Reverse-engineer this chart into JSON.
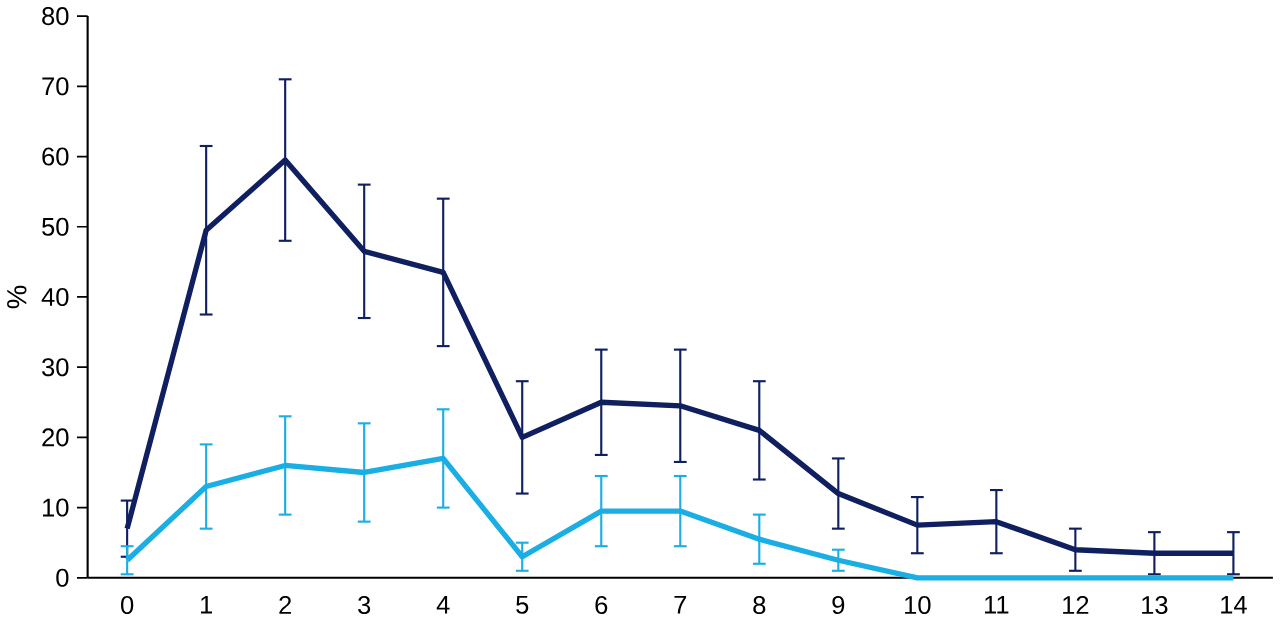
{
  "chart_data": {
    "type": "line",
    "ylabel": "%",
    "categories": [
      "0",
      "1",
      "2",
      "3",
      "4",
      "5",
      "6",
      "7",
      "8",
      "9",
      "10",
      "11",
      "12",
      "13",
      "14"
    ],
    "ylim": [
      0,
      80
    ],
    "yticks": [
      0,
      10,
      20,
      30,
      40,
      50,
      60,
      70,
      80
    ],
    "grid": false,
    "marker": "none",
    "line_style": "solid",
    "series": [
      {
        "color": "#0f1f5f",
        "values": [
          7,
          49.5,
          59.5,
          46.5,
          43.5,
          20,
          25,
          24.5,
          21,
          12,
          7.5,
          8,
          4,
          3.5,
          3.5
        ],
        "errors": [
          4,
          12,
          11.5,
          9.5,
          10.5,
          8,
          7.5,
          8,
          7,
          5,
          4,
          4.5,
          3,
          3,
          3
        ]
      },
      {
        "color": "#1aaee5",
        "values": [
          2.5,
          13,
          16,
          15,
          17,
          3,
          9.5,
          9.5,
          5.5,
          2.5,
          0,
          0,
          0,
          0,
          0
        ],
        "errors": [
          2,
          6,
          7,
          7,
          7,
          2,
          5,
          5,
          3.5,
          1.5,
          null,
          null,
          null,
          null,
          null
        ]
      }
    ]
  }
}
